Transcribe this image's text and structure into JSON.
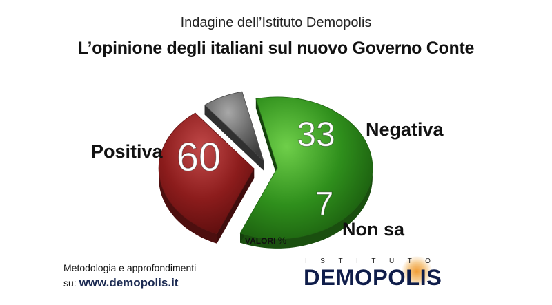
{
  "header": {
    "subtitle": "Indagine dell’Istituto Demopolis",
    "title": "L’opinione degli italiani sul nuovo Governo Conte"
  },
  "chart_data": {
    "type": "pie",
    "title": "L’opinione degli italiani sul nuovo Governo Conte",
    "subtitle": "Indagine dell’Istituto Demopolis",
    "unit_label": "VALORI",
    "unit_symbol": "%",
    "slices": [
      {
        "label": "Positiva",
        "value": 60,
        "color": "#2f8f1c"
      },
      {
        "label": "Negativa",
        "value": 33,
        "color": "#8c1c1c"
      },
      {
        "label": "Non sa",
        "value": 7,
        "color": "#6a6a6a"
      }
    ]
  },
  "footer": {
    "note_line1": "Metodologia e approfondimenti",
    "note_prefix": "su:",
    "url": "www.demopolis.it"
  },
  "logo": {
    "top_text": "ISTITUTO",
    "main_text": "DEMOPOLIS"
  }
}
